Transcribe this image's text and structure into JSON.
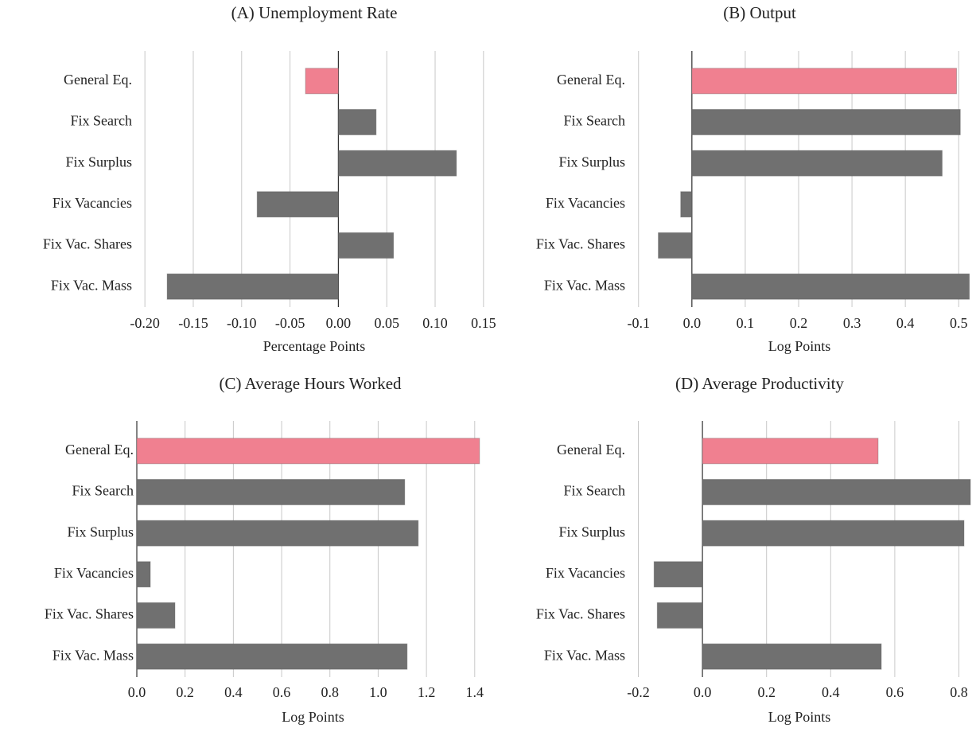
{
  "chart_data": [
    {
      "type": "bar",
      "orientation": "horizontal",
      "title": "(A) Unemployment Rate",
      "xlabel": "Percentage Points",
      "categories": [
        "General Eq.",
        "Fix Search",
        "Fix Surplus",
        "Fix Vacancies",
        "Fix Vac. Shares",
        "Fix Vac. Mass"
      ],
      "values": [
        -0.034,
        0.039,
        0.122,
        -0.084,
        0.057,
        -0.177
      ],
      "colors": [
        "#f08090",
        "#707070",
        "#707070",
        "#707070",
        "#707070",
        "#707070"
      ],
      "xlim": [
        -0.21,
        0.16
      ],
      "xticks": [
        {
          "value": -0.2,
          "label": "-0.20"
        },
        -0.15,
        {
          "value": -0.1,
          "label": "-0.10"
        },
        -0.05,
        {
          "value": 0,
          "label": "0.00"
        },
        0.05,
        {
          "value": 0.1,
          "label": "0.10"
        },
        0.15
      ],
      "grid": true
    },
    {
      "type": "bar",
      "orientation": "horizontal",
      "title": "(B) Output",
      "xlabel": "Log Points",
      "categories": [
        "General Eq.",
        "Fix Search",
        "Fix Surplus",
        "Fix Vacancies",
        "Fix Vac. Shares",
        "Fix Vac. Mass"
      ],
      "values": [
        0.496,
        0.503,
        0.469,
        -0.021,
        -0.063,
        0.52
      ],
      "colors": [
        "#f08090",
        "#707070",
        "#707070",
        "#707070",
        "#707070",
        "#707070"
      ],
      "xlim": [
        -0.119,
        0.522
      ],
      "xticks": [
        -0.1,
        {
          "value": 0,
          "label": "0.0"
        },
        0.1,
        0.2,
        0.3,
        0.4,
        0.5
      ],
      "grid": true
    },
    {
      "type": "bar",
      "orientation": "horizontal",
      "title": "(C) Average Hours Worked",
      "xlabel": "Log Points",
      "categories": [
        "General Eq.",
        "Fix Search",
        "Fix Surplus",
        "Fix Vacancies",
        "Fix Vac. Shares",
        "Fix Vac. Mass"
      ],
      "values": [
        1.42,
        1.11,
        1.166,
        0.056,
        0.158,
        1.12
      ],
      "colors": [
        "#f08090",
        "#707070",
        "#707070",
        "#707070",
        "#707070",
        "#707070"
      ],
      "xlim": [
        0,
        1.46
      ],
      "xticks": [
        {
          "value": 0,
          "label": "0.0"
        },
        0.2,
        0.4,
        0.6,
        0.8,
        {
          "value": 1,
          "label": "1.0"
        },
        1.2,
        1.4
      ],
      "grid": true
    },
    {
      "type": "bar",
      "orientation": "horizontal",
      "title": "(D) Average Productivity",
      "xlabel": "Log Points",
      "categories": [
        "General Eq.",
        "Fix Search",
        "Fix Surplus",
        "Fix Vacancies",
        "Fix Vac. Shares",
        "Fix Vac. Mass"
      ],
      "values": [
        0.548,
        0.836,
        0.816,
        -0.151,
        -0.141,
        0.558
      ],
      "colors": [
        "#f08090",
        "#707070",
        "#707070",
        "#707070",
        "#707070",
        "#707070"
      ],
      "xlim": [
        -0.231,
        0.836
      ],
      "xticks": [
        -0.2,
        {
          "value": 0,
          "label": "0.0"
        },
        0.2,
        0.4,
        0.6,
        0.8
      ],
      "grid": true
    }
  ]
}
